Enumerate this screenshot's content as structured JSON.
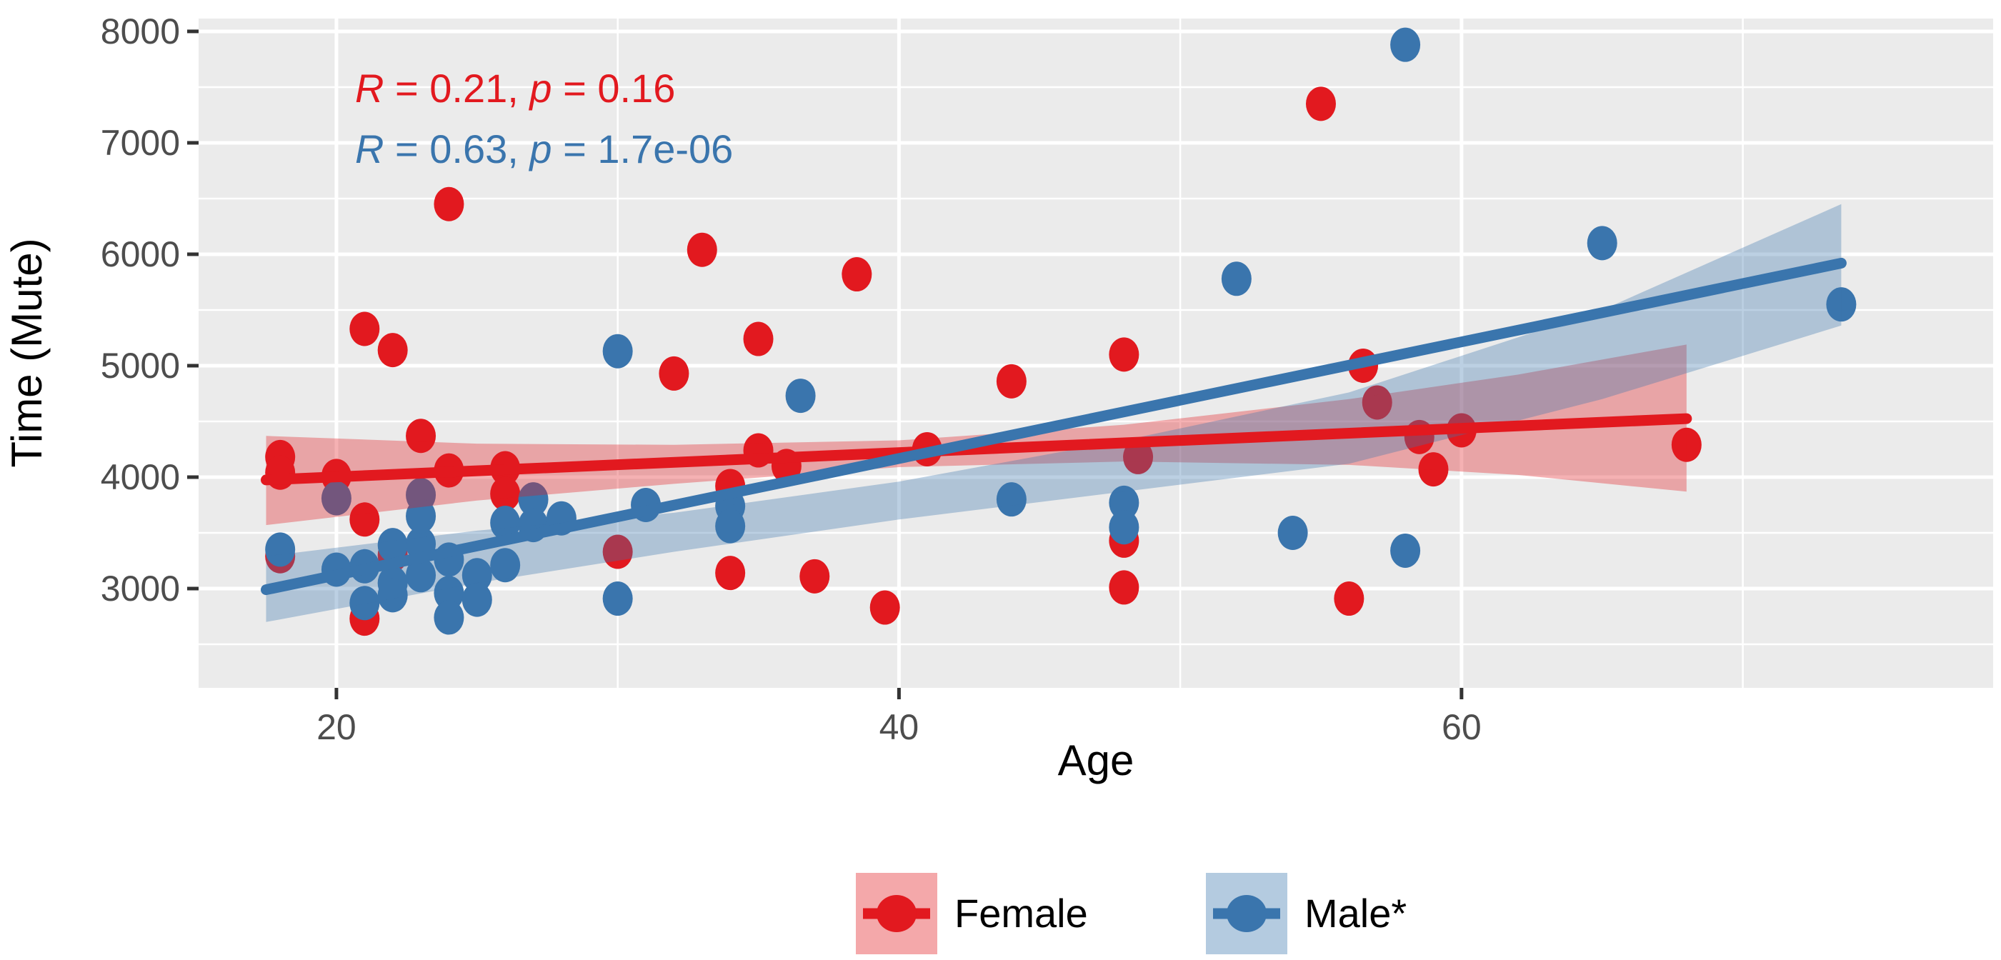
{
  "chart_data": {
    "type": "scatter",
    "title": "",
    "xlabel": "Age",
    "ylabel": "Time (Mute)",
    "xlim": [
      15.1,
      78.9
    ],
    "ylim": [
      2109,
      8115
    ],
    "x_major_ticks": [
      20,
      40,
      60
    ],
    "x_minor_ticks": [
      30,
      50,
      70
    ],
    "y_major_ticks": [
      3000,
      4000,
      5000,
      6000,
      7000,
      8000
    ],
    "y_minor_ticks": [
      2500,
      3500,
      4500,
      5500,
      6500,
      7500
    ],
    "grid": true,
    "panel_color": "#EBEBEB",
    "grid_color": "#FFFFFF",
    "tick_color": "#333333",
    "tick_label_color": "#4D4D4D",
    "axis_title_color": "#000000",
    "legend_position": "bottom",
    "annotations": [
      {
        "series": "Female",
        "label": "R = 0.21, p = 0.16",
        "color": "#E2191F",
        "parts": [
          {
            "t": "R",
            "i": true
          },
          {
            "t": " = 0.21, ",
            "i": false
          },
          {
            "t": "p",
            "i": true
          },
          {
            "t": " = 0.16",
            "i": false
          }
        ]
      },
      {
        "series": "Male",
        "label": "R = 0.63, p = 1.7e-06",
        "color": "#3A75AD",
        "parts": [
          {
            "t": "R",
            "i": true
          },
          {
            "t": " = 0.63, ",
            "i": false
          },
          {
            "t": "p",
            "i": true
          },
          {
            "t": " = 1.7e-06",
            "i": false
          }
        ]
      }
    ],
    "series": [
      {
        "name": "Female",
        "legend_label": "Female",
        "color": "#E2191F",
        "band_alpha": 0.34,
        "trend": {
          "x1": 17.5,
          "y1": 3975,
          "x2": 68,
          "y2": 4525
        },
        "band_upper": [
          [
            17.5,
            4370
          ],
          [
            25,
            4300
          ],
          [
            32,
            4290
          ],
          [
            40,
            4330
          ],
          [
            48,
            4470
          ],
          [
            56,
            4700
          ],
          [
            62,
            4920
          ],
          [
            68,
            5190
          ]
        ],
        "band_lower": [
          [
            17.5,
            3570
          ],
          [
            25,
            3790
          ],
          [
            32,
            3940
          ],
          [
            40,
            4090
          ],
          [
            48,
            4140
          ],
          [
            56,
            4110
          ],
          [
            62,
            4020
          ],
          [
            68,
            3870
          ]
        ],
        "points": [
          [
            18,
            4180
          ],
          [
            18,
            4040
          ],
          [
            18,
            3290
          ],
          [
            20,
            4010
          ],
          [
            21,
            5330
          ],
          [
            22,
            5140
          ],
          [
            23,
            4370
          ],
          [
            24,
            4060
          ],
          [
            21,
            3620
          ],
          [
            22,
            3300
          ],
          [
            21,
            2730
          ],
          [
            24,
            6450
          ],
          [
            26,
            4080
          ],
          [
            26,
            3850
          ],
          [
            30,
            3330
          ],
          [
            32,
            4930
          ],
          [
            33,
            6040
          ],
          [
            34,
            3140
          ],
          [
            35,
            5240
          ],
          [
            35,
            4240
          ],
          [
            36,
            4100
          ],
          [
            34,
            3920
          ],
          [
            37,
            3110
          ],
          [
            38.5,
            5820
          ],
          [
            39.5,
            2830
          ],
          [
            41,
            4250
          ],
          [
            44,
            4860
          ],
          [
            48,
            5100
          ],
          [
            48.5,
            4180
          ],
          [
            48,
            3430
          ],
          [
            48,
            3010
          ],
          [
            55,
            7350
          ],
          [
            56,
            2910
          ],
          [
            56.5,
            5000
          ],
          [
            57,
            4670
          ],
          [
            58.5,
            4360
          ],
          [
            59,
            4070
          ],
          [
            60,
            4420
          ],
          [
            68,
            4290
          ]
        ]
      },
      {
        "name": "Male",
        "legend_label": "Male*",
        "color": "#3A75AD",
        "band_alpha": 0.34,
        "trend": {
          "x1": 17.5,
          "y1": 2990,
          "x2": 73.5,
          "y2": 5920
        },
        "band_upper": [
          [
            17.5,
            3290
          ],
          [
            25,
            3520
          ],
          [
            32,
            3680
          ],
          [
            40,
            3960
          ],
          [
            48,
            4330
          ],
          [
            56,
            4760
          ],
          [
            65,
            5500
          ],
          [
            73.5,
            6450
          ]
        ],
        "band_lower": [
          [
            17.5,
            2700
          ],
          [
            25,
            3050
          ],
          [
            32,
            3330
          ],
          [
            40,
            3620
          ],
          [
            48,
            3870
          ],
          [
            56,
            4120
          ],
          [
            65,
            4700
          ],
          [
            73.5,
            5360
          ]
        ],
        "points": [
          [
            18,
            3350
          ],
          [
            20,
            3810
          ],
          [
            20,
            3170
          ],
          [
            21,
            3200
          ],
          [
            21,
            2870
          ],
          [
            22,
            3390
          ],
          [
            23,
            3400
          ],
          [
            22,
            3050
          ],
          [
            22,
            2940
          ],
          [
            23,
            3840
          ],
          [
            23,
            3650
          ],
          [
            23,
            3120
          ],
          [
            24,
            3260
          ],
          [
            24,
            2960
          ],
          [
            24,
            2740
          ],
          [
            25,
            3120
          ],
          [
            25,
            2900
          ],
          [
            26,
            3590
          ],
          [
            26,
            3210
          ],
          [
            27,
            3800
          ],
          [
            27,
            3570
          ],
          [
            28,
            3630
          ],
          [
            30,
            5130
          ],
          [
            30,
            2910
          ],
          [
            31,
            3750
          ],
          [
            34,
            3740
          ],
          [
            34,
            3560
          ],
          [
            36.5,
            4730
          ],
          [
            44,
            3800
          ],
          [
            48,
            3770
          ],
          [
            48,
            3550
          ],
          [
            52,
            5780
          ],
          [
            54,
            3500
          ],
          [
            58,
            3340
          ],
          [
            58,
            7880
          ],
          [
            65,
            6100
          ],
          [
            73.5,
            5550
          ]
        ]
      }
    ]
  }
}
